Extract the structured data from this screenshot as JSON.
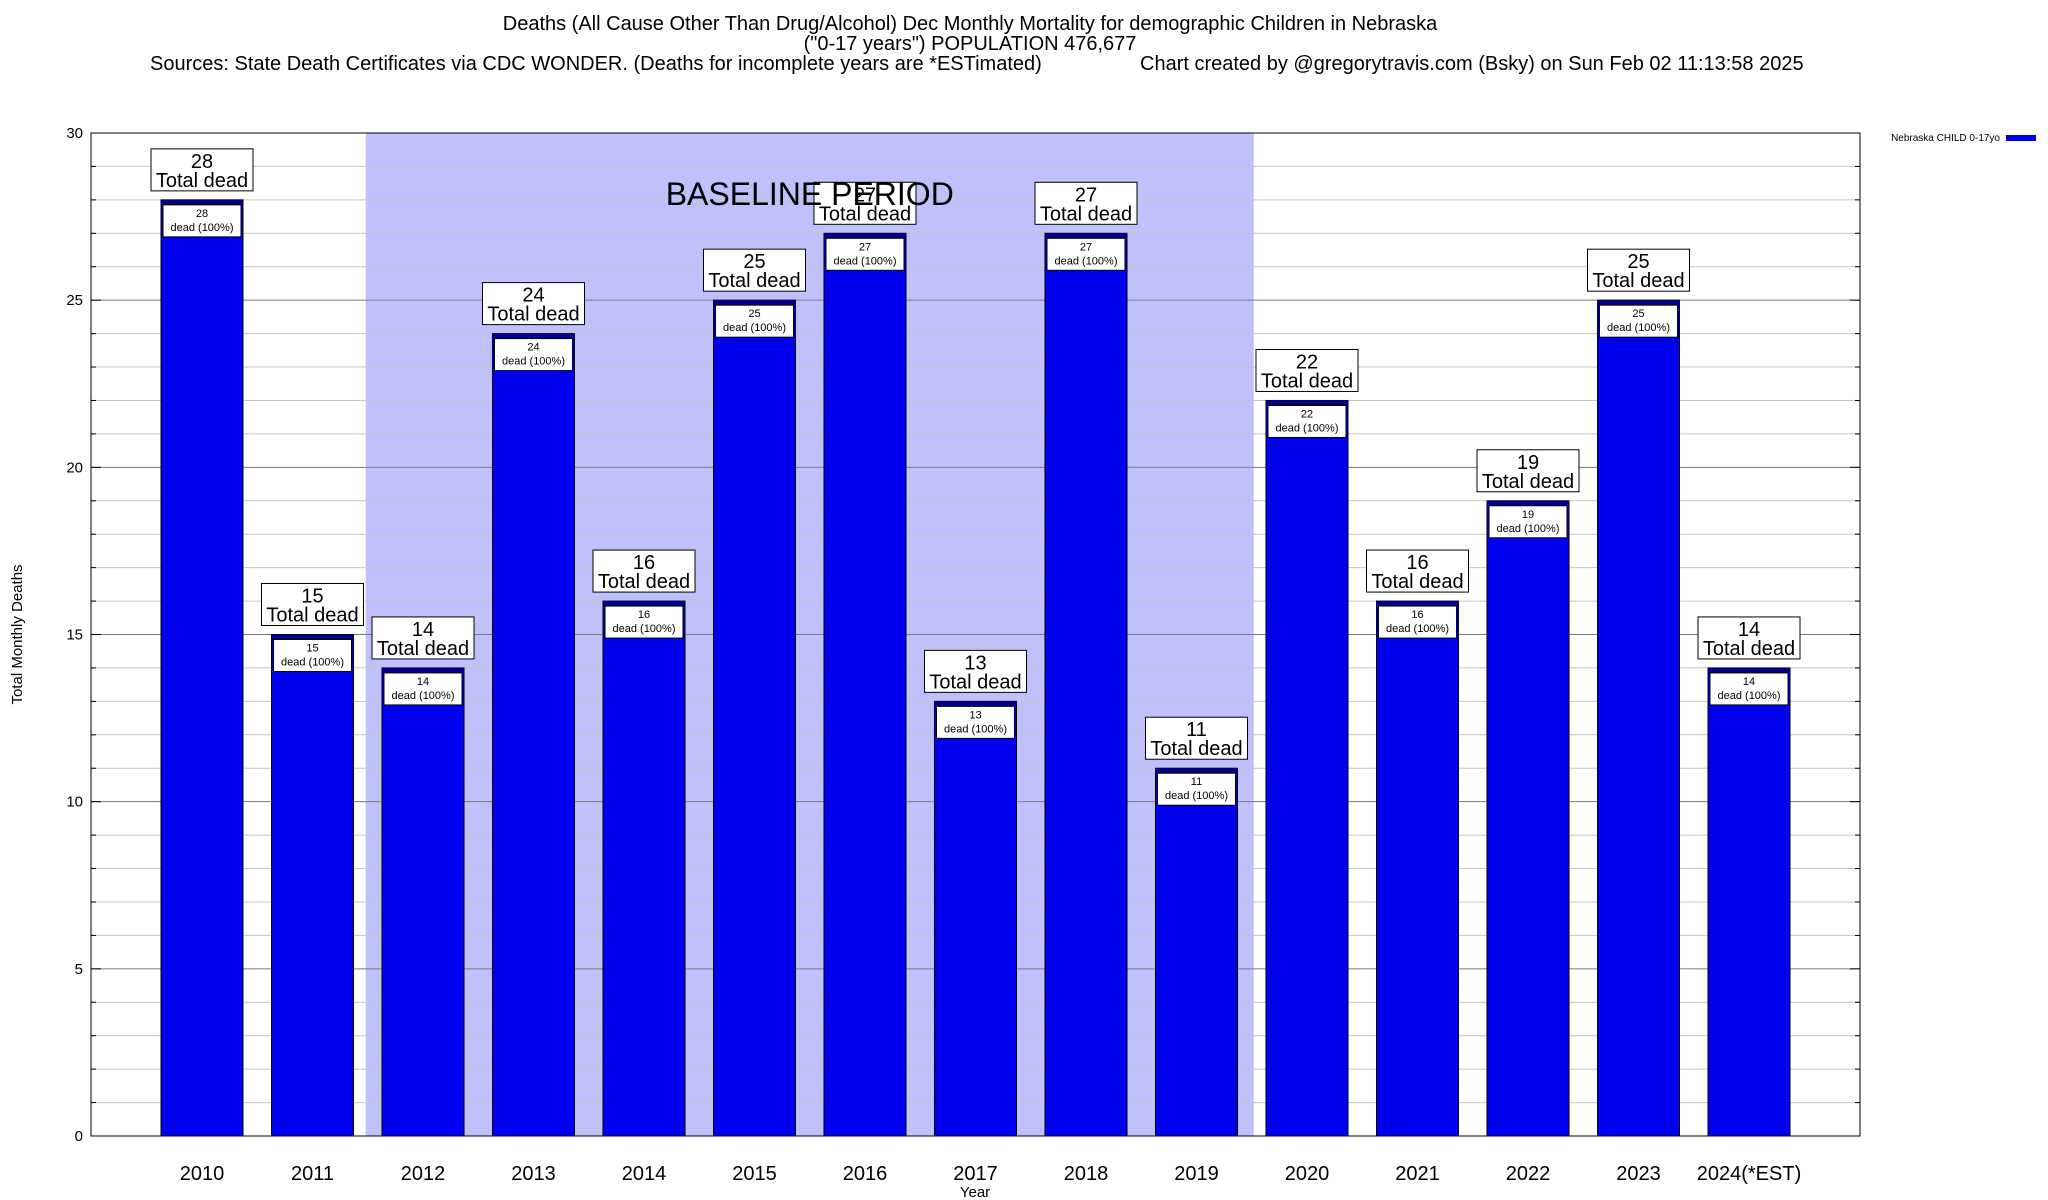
{
  "header": {
    "title_line1": "Deaths (All Cause Other Than Drug/Alcohol) Dec Monthly Mortality for demographic Children in Nebraska",
    "title_line2": "(\"0-17 years\") POPULATION 476,677",
    "sources": "Sources: State Death Certificates via CDC WONDER. (Deaths for incomplete years are *ESTimated)",
    "credit": "Chart created by @gregorytravis.com (Bsky) on Sun Feb 02 11:13:58 2025"
  },
  "chart_data": {
    "type": "bar",
    "categories": [
      "2010",
      "2011",
      "2012",
      "2013",
      "2014",
      "2015",
      "2016",
      "2017",
      "2018",
      "2019",
      "2020",
      "2021",
      "2022",
      "2023",
      "2024(*EST)"
    ],
    "series": [
      {
        "name": "Nebraska CHILD 0-17yo",
        "values": [
          28,
          15,
          14,
          24,
          16,
          25,
          27,
          13,
          27,
          11,
          22,
          16,
          19,
          25,
          14
        ]
      }
    ],
    "xlabel": "Year",
    "ylabel": "Total Monthly Deaths",
    "ylim": [
      0,
      30
    ],
    "yticks": [
      "0",
      "5",
      "10",
      "15",
      "20",
      "25",
      "30"
    ],
    "grid": true,
    "legend_position": "top-right",
    "bar_label_line2": "Total dead",
    "inner_label_text": "dead (100%)",
    "baseline": {
      "label": "BASELINE PERIOD",
      "from": "2012",
      "to": "2019"
    },
    "colors": {
      "bar": "#0000ee",
      "bar_cap": "#00008b",
      "baseline": "#c0c0fa"
    }
  }
}
